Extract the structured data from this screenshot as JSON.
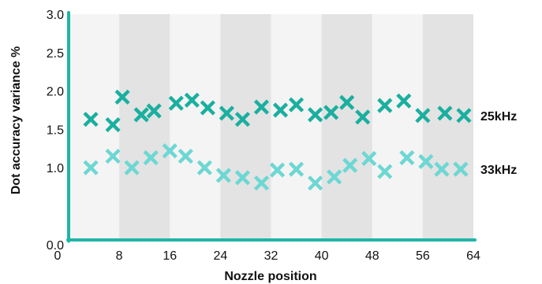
{
  "chart_data": {
    "type": "scatter",
    "xlabel": "Nozzle position",
    "ylabel": "Dot accuracy variance %",
    "xlim": [
      0,
      64
    ],
    "ylim": [
      -0.7,
      3.0
    ],
    "x_ticks": [
      "0",
      "8",
      "16",
      "24",
      "32",
      "40",
      "48",
      "56",
      "64"
    ],
    "y_ticks": [
      "0.0",
      "1.0",
      "1.5",
      "2.0",
      "2.5",
      "3.0"
    ],
    "y_tick_values": [
      0.0,
      1.0,
      1.5,
      2.0,
      2.5,
      3.0
    ],
    "x_bands": [
      [
        8,
        16
      ],
      [
        24,
        32
      ],
      [
        40,
        48
      ],
      [
        56,
        64
      ]
    ],
    "colors": {
      "axis": "#1fb5a6",
      "band_dark": "#e3e3e3",
      "band_light": "#f4f4f4",
      "series_25khz": "#1aaf9f",
      "series_33khz": "#6dd7d3"
    },
    "series": [
      {
        "name": "25kHz",
        "color_key": "series_25khz",
        "x": [
          3.5,
          7.0,
          8.5,
          11.5,
          13.5,
          17.0,
          19.5,
          22.0,
          25.0,
          27.5,
          30.5,
          33.5,
          36.0,
          39.0,
          41.5,
          44.0,
          46.5,
          50.0,
          53.0,
          56.0,
          59.5,
          62.5
        ],
        "y": [
          1.63,
          1.56,
          1.92,
          1.69,
          1.74,
          1.84,
          1.88,
          1.78,
          1.71,
          1.63,
          1.79,
          1.75,
          1.82,
          1.69,
          1.72,
          1.85,
          1.66,
          1.81,
          1.87,
          1.68,
          1.71,
          1.68
        ]
      },
      {
        "name": "33kHz",
        "color_key": "series_33khz",
        "x": [
          3.5,
          7.0,
          10.0,
          13.0,
          16.0,
          18.5,
          21.5,
          24.5,
          27.5,
          30.5,
          33.0,
          36.0,
          39.0,
          42.0,
          44.5,
          47.5,
          50.0,
          53.5,
          56.5,
          59.0,
          62.0
        ],
        "y": [
          1.0,
          1.15,
          1.0,
          1.13,
          1.22,
          1.15,
          1.0,
          0.9,
          0.87,
          0.8,
          0.97,
          0.98,
          0.8,
          0.88,
          1.03,
          1.12,
          0.95,
          1.13,
          1.08,
          0.98,
          0.98
        ]
      }
    ]
  }
}
